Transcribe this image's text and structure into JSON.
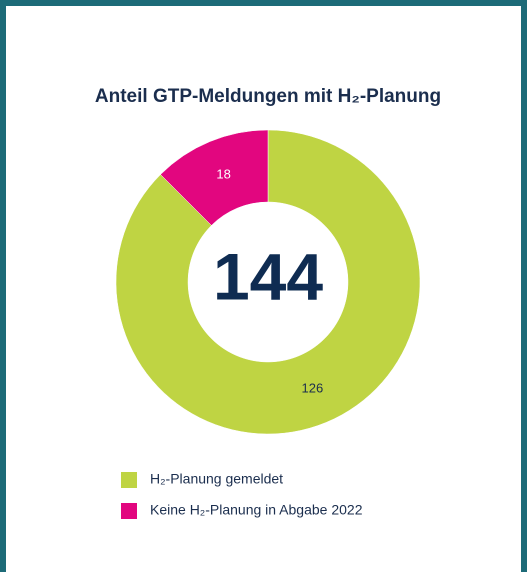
{
  "chart_data": {
    "type": "pie",
    "donut": true,
    "title": "Anteil GTP-Meldungen mit H₂-Planung",
    "categories": [
      "H₂-Planung gemeldet",
      "Keine H₂-Planung in Abgabe 2022"
    ],
    "values": [
      126,
      18
    ],
    "colors": [
      "#bfd443",
      "#e2067f"
    ],
    "total": 144,
    "legend": "bottom-left"
  }
}
